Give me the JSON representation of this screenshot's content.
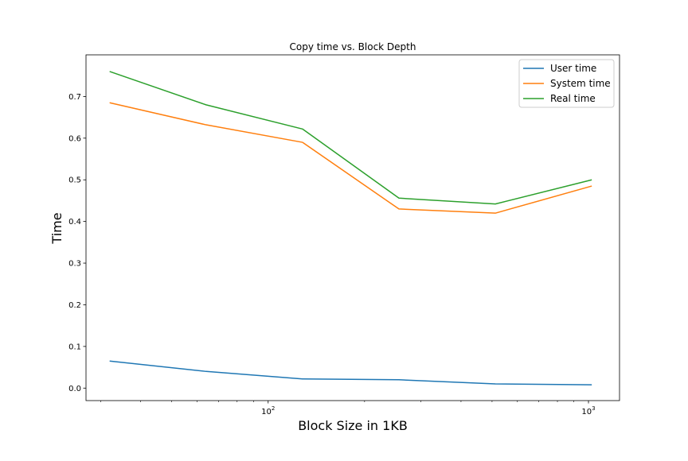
{
  "chart_data": {
    "type": "line",
    "title": "Copy time vs. Block Depth",
    "xlabel": "Block Size in 1KB",
    "ylabel": "Time",
    "xscale": "log",
    "xlim": [
      27,
      1250
    ],
    "ylim": [
      -0.03,
      0.8
    ],
    "x": [
      32,
      64,
      128,
      256,
      512,
      1024
    ],
    "series": [
      {
        "name": "User time",
        "color": "#1f77b4",
        "values": [
          0.065,
          0.04,
          0.022,
          0.02,
          0.01,
          0.008
        ]
      },
      {
        "name": "System time",
        "color": "#ff7f0e",
        "values": [
          0.685,
          0.632,
          0.59,
          0.43,
          0.42,
          0.485
        ]
      },
      {
        "name": "Real time",
        "color": "#2ca02c",
        "values": [
          0.76,
          0.68,
          0.622,
          0.456,
          0.442,
          0.5
        ]
      }
    ],
    "yticks": [
      {
        "value": 0.0,
        "label": "0.0"
      },
      {
        "value": 0.1,
        "label": "0.1"
      },
      {
        "value": 0.2,
        "label": "0.2"
      },
      {
        "value": 0.3,
        "label": "0.3"
      },
      {
        "value": 0.4,
        "label": "0.4"
      },
      {
        "value": 0.5,
        "label": "0.5"
      },
      {
        "value": 0.6,
        "label": "0.6"
      },
      {
        "value": 0.7,
        "label": "0.7"
      }
    ],
    "xticks_major": [
      {
        "value": 100,
        "base": "10",
        "exp": "2"
      },
      {
        "value": 1000,
        "base": "10",
        "exp": "3"
      }
    ],
    "xticks_minor": [
      30,
      40,
      50,
      60,
      70,
      80,
      90,
      200,
      300,
      400,
      500,
      600,
      700,
      800,
      900
    ],
    "grid": false,
    "legend": "upper-right"
  }
}
